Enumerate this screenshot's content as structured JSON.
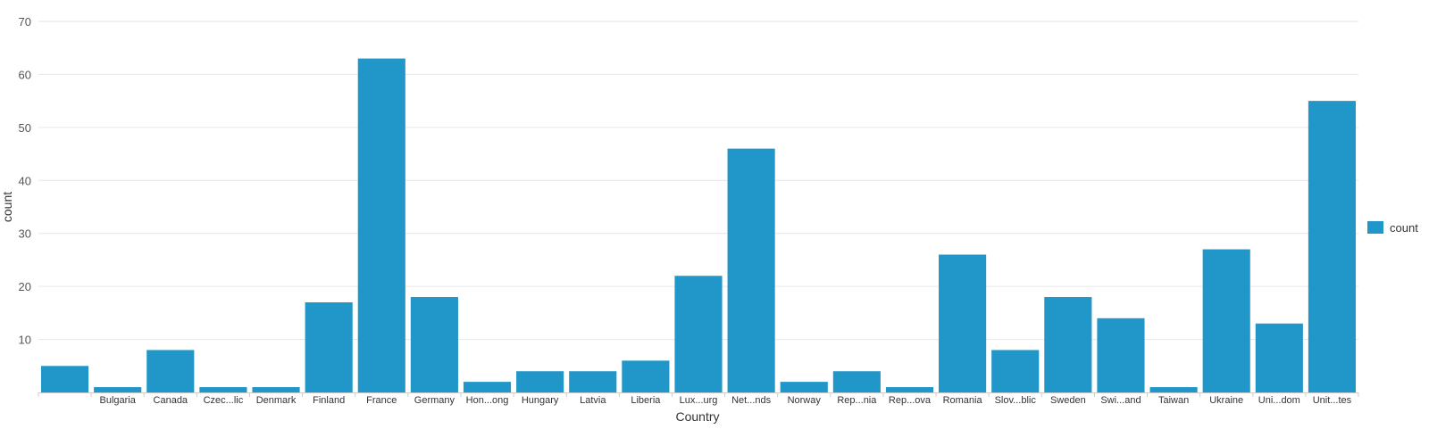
{
  "chart_data": {
    "type": "bar",
    "xlabel": "Country",
    "ylabel": "count",
    "ylim": [
      0,
      70
    ],
    "yticks": [
      10,
      20,
      30,
      40,
      50,
      60,
      70
    ],
    "grid": true,
    "legend_position": "right",
    "categories": [
      "",
      "Bulgaria",
      "Canada",
      "Czec...lic",
      "Denmark",
      "Finland",
      "France",
      "Germany",
      "Hon...ong",
      "Hungary",
      "Latvia",
      "Liberia",
      "Lux...urg",
      "Net...nds",
      "Norway",
      "Rep...nia",
      "Rep...ova",
      "Romania",
      "Slov...blic",
      "Sweden",
      "Swi...and",
      "Taiwan",
      "Ukraine",
      "Uni...dom",
      "Unit...tes"
    ],
    "series": [
      {
        "name": "count",
        "color": "#2196c8",
        "values": [
          5,
          1,
          8,
          1,
          1,
          17,
          63,
          18,
          2,
          4,
          4,
          6,
          22,
          46,
          2,
          4,
          1,
          26,
          8,
          18,
          14,
          1,
          27,
          13,
          55
        ]
      }
    ]
  }
}
